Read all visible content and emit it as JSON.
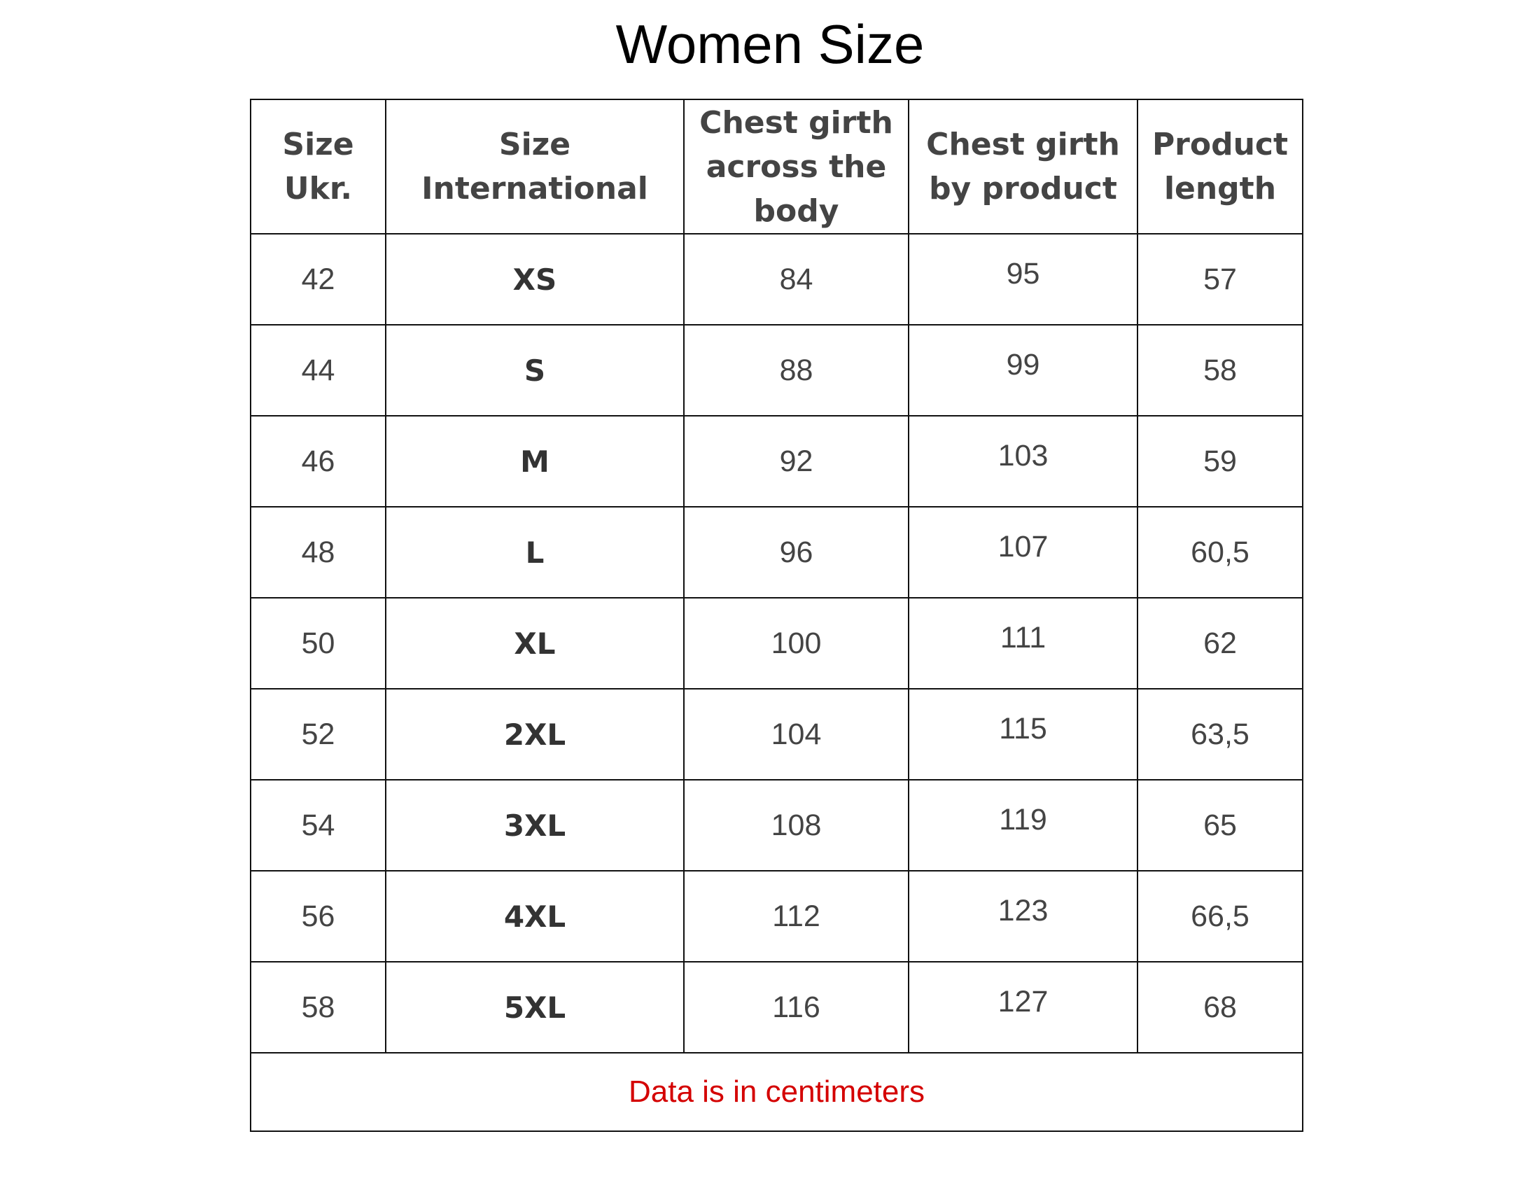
{
  "title": "Women Size",
  "table": {
    "header": [
      "Size Ukr.",
      "Size International",
      "Chest girth across the body",
      "Chest girth by product",
      "Product length"
    ],
    "rows": [
      [
        "42",
        "XS",
        "84",
        "95",
        "57"
      ],
      [
        "44",
        "S",
        "88",
        "99",
        "58"
      ],
      [
        "46",
        "M",
        "92",
        "103",
        "59"
      ],
      [
        "48",
        "L",
        "96",
        "107",
        "60,5"
      ],
      [
        "50",
        "XL",
        "100",
        "111",
        "62"
      ],
      [
        "52",
        "2XL",
        "104",
        "115",
        "63,5"
      ],
      [
        "54",
        "3XL",
        "108",
        "119",
        "65"
      ],
      [
        "56",
        "4XL",
        "112",
        "123",
        "66,5"
      ],
      [
        "58",
        "5XL",
        "116",
        "127",
        "68"
      ]
    ],
    "note": "Data is in centimeters"
  }
}
